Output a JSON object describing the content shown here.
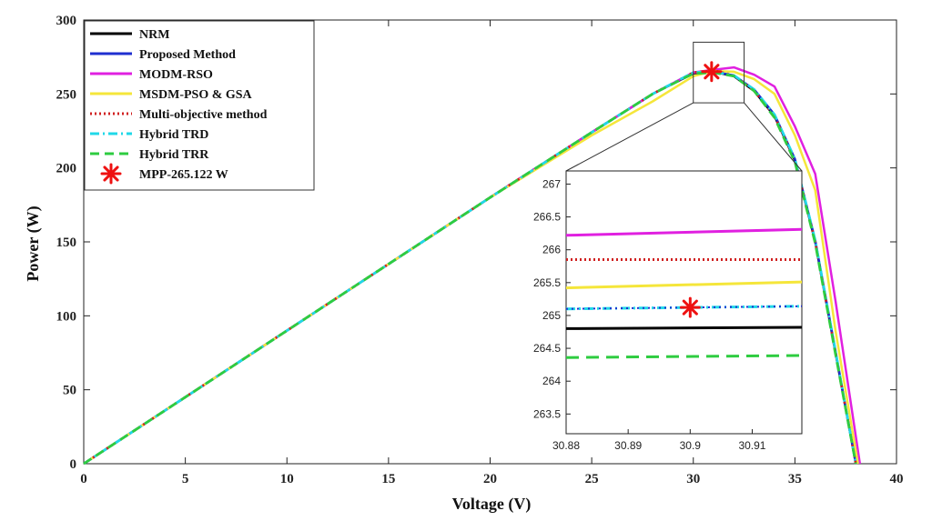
{
  "chart_data": [
    {
      "type": "line",
      "xlabel": "Voltage (V)",
      "ylabel": "Power (W)",
      "xlim": [
        0,
        40
      ],
      "ylim": [
        0,
        300
      ],
      "xticks": [
        0,
        5,
        10,
        15,
        20,
        25,
        30,
        35,
        40
      ],
      "yticks": [
        0,
        50,
        100,
        150,
        200,
        250,
        300
      ],
      "grid": false,
      "legend_position": "top-left",
      "series": [
        {
          "name": "NRM",
          "color": "#000000",
          "style": "solid",
          "x": [
            0,
            5,
            10,
            15,
            20,
            25,
            28,
            30,
            31,
            32,
            33,
            34,
            35,
            36,
            37,
            38
          ],
          "y": [
            0,
            45,
            90,
            135,
            180,
            224,
            250,
            264,
            265,
            262,
            252,
            235,
            205,
            150,
            75,
            0
          ]
        },
        {
          "name": "Proposed Method",
          "color": "#1f2fd0",
          "style": "solid",
          "x": [
            0,
            5,
            10,
            15,
            20,
            25,
            28,
            30,
            31,
            32,
            33,
            34,
            35,
            36,
            37,
            38
          ],
          "y": [
            0,
            45,
            90,
            135,
            180,
            224,
            250,
            264.5,
            265.1,
            262.5,
            253,
            236,
            206,
            151,
            76,
            0
          ]
        },
        {
          "name": "MODM-RSO",
          "color": "#e020e0",
          "style": "solid",
          "x": [
            0,
            5,
            10,
            15,
            20,
            25,
            28,
            30,
            31,
            32,
            33,
            34,
            35,
            36,
            37,
            38.2
          ],
          "y": [
            0,
            45,
            90,
            135,
            180,
            224,
            250,
            264.5,
            266.3,
            268,
            263,
            255,
            228,
            196,
            110,
            0
          ]
        },
        {
          "name": "MSDM-PSO & GSA",
          "color": "#f5e63a",
          "style": "solid",
          "x": [
            0,
            5,
            10,
            15,
            20,
            25,
            28,
            30,
            31,
            32,
            33,
            34,
            35,
            36,
            37,
            38.1
          ],
          "y": [
            0,
            45,
            90,
            135,
            180,
            222,
            245,
            262,
            265.5,
            265,
            260,
            250,
            222,
            185,
            90,
            0
          ]
        },
        {
          "name": "Multi-objective method",
          "color": "#d02020",
          "style": "dotted",
          "x": [
            0,
            5,
            10,
            15,
            20,
            25,
            28,
            30,
            31,
            32,
            33,
            34,
            35,
            36,
            37,
            38
          ],
          "y": [
            0,
            45,
            90,
            135,
            180,
            224,
            250,
            264.5,
            265.9,
            262.5,
            252,
            235,
            205,
            150,
            75,
            0
          ]
        },
        {
          "name": "Hybrid TRD",
          "color": "#20d8e8",
          "style": "dashdot",
          "x": [
            0,
            5,
            10,
            15,
            20,
            25,
            28,
            30,
            31,
            32,
            33,
            34,
            35,
            36,
            37,
            38
          ],
          "y": [
            0,
            45,
            90,
            135,
            180,
            224,
            250,
            264.5,
            265.1,
            262.5,
            253,
            236,
            206,
            151,
            76,
            0
          ]
        },
        {
          "name": "Hybrid  TRR",
          "color": "#2ecc40",
          "style": "dashed",
          "x": [
            0,
            5,
            10,
            15,
            20,
            25,
            28,
            30,
            31,
            32,
            33,
            34,
            35,
            36,
            37,
            38
          ],
          "y": [
            0,
            45,
            90,
            135,
            180,
            224,
            250,
            263.8,
            264.4,
            262,
            252,
            234,
            204,
            149,
            74,
            0
          ]
        }
      ],
      "marker": {
        "name": "MPP-265.122 W",
        "color": "#ee1111",
        "x": 30.9,
        "y": 265.122
      },
      "zoom_box": {
        "x": [
          30,
          32.5
        ],
        "y": [
          244,
          285
        ]
      }
    },
    {
      "type": "line",
      "inset": true,
      "xlim": [
        30.88,
        30.918
      ],
      "ylim": [
        263.2,
        267.2
      ],
      "xticks": [
        30.88,
        30.89,
        30.9,
        30.91
      ],
      "yticks": [
        263.5,
        264,
        264.5,
        265,
        265.5,
        266,
        266.5,
        267
      ],
      "xtick_labels": [
        "30.88",
        "30.89",
        "30.9",
        "30.91"
      ],
      "ytick_labels": [
        "263.5",
        "264",
        "264.5",
        "265",
        "265.5",
        "266",
        "266.5",
        "267"
      ],
      "series": [
        {
          "name": "MODM-RSO",
          "x": [
            30.88,
            30.918
          ],
          "y": [
            266.22,
            266.31
          ]
        },
        {
          "name": "Multi-objective method",
          "x": [
            30.88,
            30.918
          ],
          "y": [
            265.85,
            265.85
          ]
        },
        {
          "name": "MSDM-PSO & GSA",
          "x": [
            30.88,
            30.918
          ],
          "y": [
            265.42,
            265.51
          ]
        },
        {
          "name": "Hybrid TRD",
          "x": [
            30.88,
            30.918
          ],
          "y": [
            265.1,
            265.14
          ]
        },
        {
          "name": "Proposed Method",
          "x": [
            30.88,
            30.918
          ],
          "y": [
            265.1,
            265.14
          ]
        },
        {
          "name": "NRM",
          "x": [
            30.88,
            30.918
          ],
          "y": [
            264.8,
            264.82
          ]
        },
        {
          "name": "Hybrid  TRR",
          "x": [
            30.88,
            30.918
          ],
          "y": [
            264.36,
            264.39
          ]
        }
      ],
      "marker": {
        "x": 30.9,
        "y": 265.122
      }
    }
  ]
}
